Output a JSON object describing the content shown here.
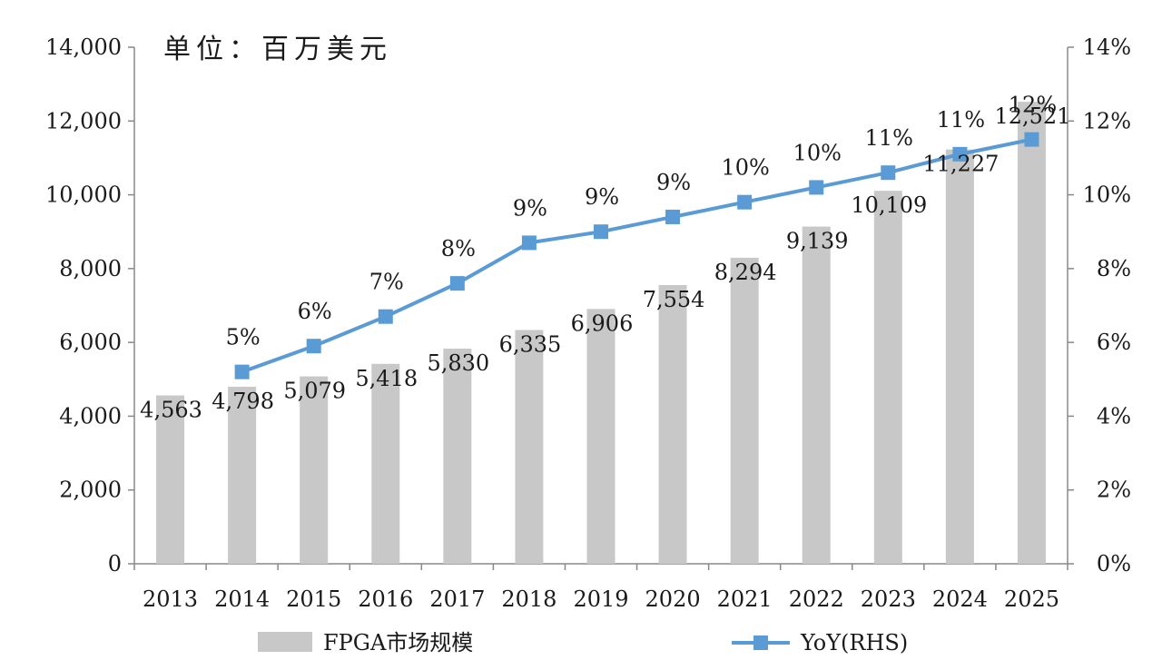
{
  "chart_data": {
    "type": "bar+line",
    "unit_note": "单位：百万美元",
    "categories": [
      "2013",
      "2014",
      "2015",
      "2016",
      "2017",
      "2018",
      "2019",
      "2020",
      "2021",
      "2022",
      "2023",
      "2024",
      "2025"
    ],
    "series": [
      {
        "name": "FPGA市场规模",
        "type": "bar",
        "axis": "left",
        "values": [
          4563,
          4798,
          5079,
          5418,
          5830,
          6335,
          6906,
          7554,
          8294,
          9139,
          10109,
          11227,
          12521
        ],
        "labels": [
          "4,563",
          "4,798",
          "5,079",
          "5,418",
          "5,830",
          "6,335",
          "6,906",
          "7,554",
          "8,294",
          "9,139",
          "10,109",
          "11,227",
          "12,521"
        ],
        "color": "#c8c8c8"
      },
      {
        "name": "YoY(RHS)",
        "type": "line",
        "axis": "right",
        "values": [
          null,
          5.2,
          5.9,
          6.7,
          7.6,
          8.7,
          9.0,
          9.4,
          9.8,
          10.2,
          10.6,
          11.1,
          11.5
        ],
        "labels": [
          "",
          "5%",
          "6%",
          "7%",
          "8%",
          "9%",
          "9%",
          "9%",
          "10%",
          "10%",
          "11%",
          "11%",
          "12%"
        ],
        "color": "#5b9bd5"
      }
    ],
    "y_left": {
      "min": 0,
      "max": 14000,
      "ticks": [
        "0",
        "2,000",
        "4,000",
        "6,000",
        "8,000",
        "10,000",
        "12,000",
        "14,000"
      ]
    },
    "y_right": {
      "min": 0,
      "max": 14,
      "ticks": [
        "0%",
        "2%",
        "4%",
        "6%",
        "8%",
        "10%",
        "12%",
        "14%"
      ]
    },
    "legend_position": "bottom",
    "grid": false
  }
}
